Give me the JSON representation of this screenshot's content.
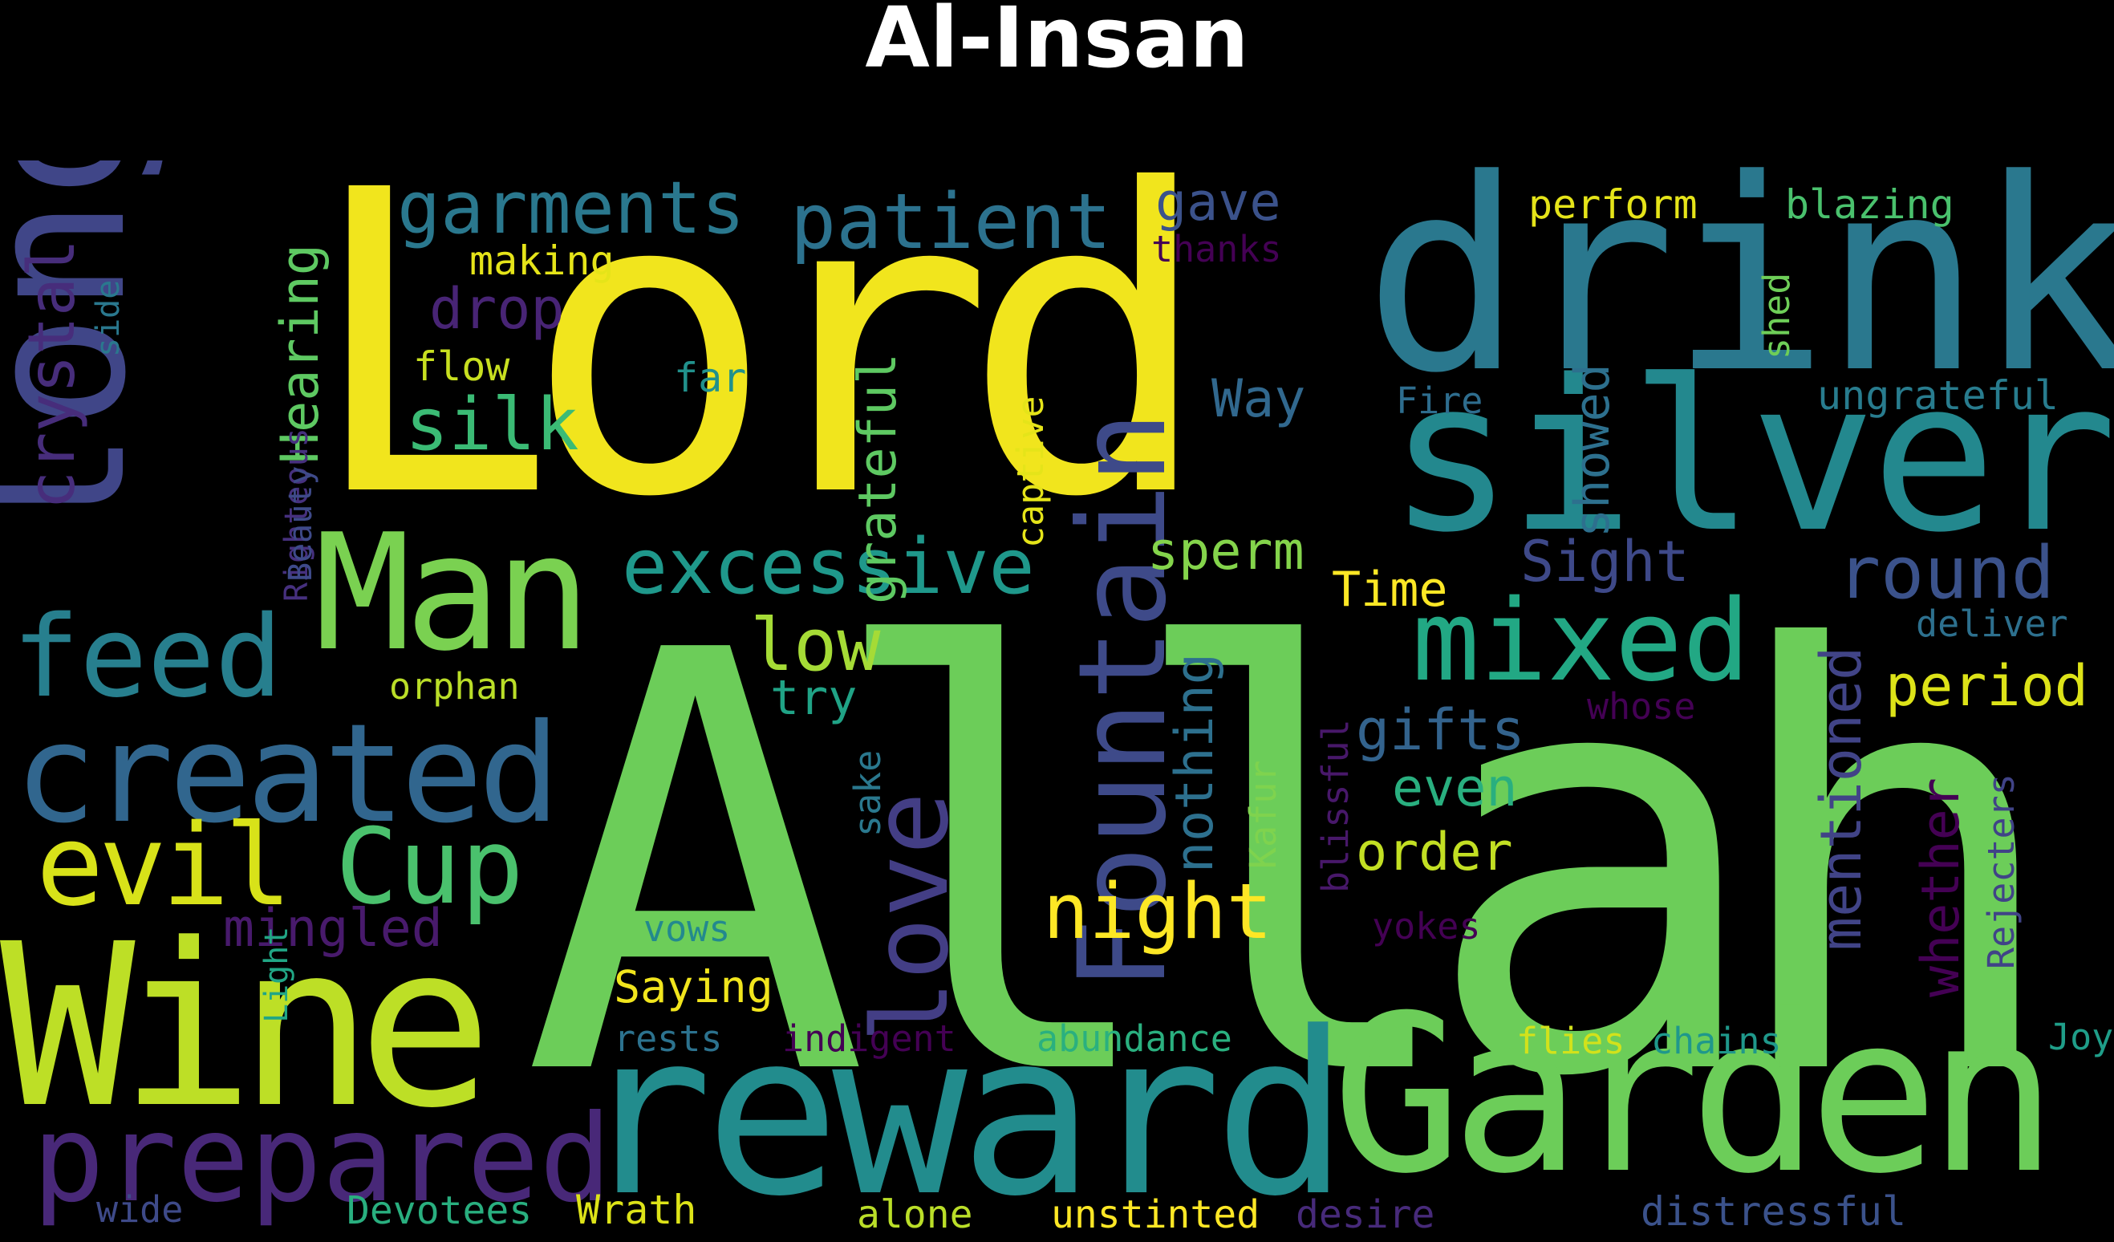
{
  "title": "Al-Insan",
  "colors": {
    "background": "#000000",
    "title": "#ffffff"
  },
  "words": [
    {
      "text": "Allah",
      "color": "#6ccd59"
    },
    {
      "text": "Lord",
      "color": "#f1e51d"
    },
    {
      "text": "drink",
      "color": "#2a788e"
    },
    {
      "text": "silver",
      "color": "#23888e"
    },
    {
      "text": "reward",
      "color": "#228c8d"
    },
    {
      "text": "Garden",
      "color": "#6ccd59"
    },
    {
      "text": "Wine",
      "color": "#bddf26"
    },
    {
      "text": "long",
      "color": "#404688"
    },
    {
      "text": "Man",
      "color": "#7ad151"
    },
    {
      "text": "Fountain",
      "color": "#3e4a89"
    },
    {
      "text": "created",
      "color": "#31668e"
    },
    {
      "text": "prepared",
      "color": "#482878"
    },
    {
      "text": "mixed",
      "color": "#22a884"
    },
    {
      "text": "feed",
      "color": "#277f8e"
    },
    {
      "text": "evil",
      "color": "#d8e219"
    },
    {
      "text": "Cup",
      "color": "#4ac16d"
    },
    {
      "text": "love",
      "color": "#433e85"
    },
    {
      "text": "excessive",
      "color": "#1f988b"
    },
    {
      "text": "patient",
      "color": "#2c728e"
    },
    {
      "text": "garments",
      "color": "#2a788e"
    },
    {
      "text": "night",
      "color": "#fde725"
    },
    {
      "text": "silk",
      "color": "#3bbb75"
    },
    {
      "text": "crystal",
      "color": "#472d7b"
    },
    {
      "text": "low",
      "color": "#a5db36"
    },
    {
      "text": "round",
      "color": "#3b528b"
    },
    {
      "text": "period",
      "color": "#dde318"
    },
    {
      "text": "mentioned",
      "color": "#414487"
    },
    {
      "text": "grateful",
      "color": "#5ec962"
    },
    {
      "text": "nothing",
      "color": "#2d708e"
    },
    {
      "text": "Hearing",
      "color": "#5ec962"
    },
    {
      "text": "Sight",
      "color": "#3e4989"
    },
    {
      "text": "gifts",
      "color": "#33638d"
    },
    {
      "text": "order",
      "color": "#c2df23"
    },
    {
      "text": "even",
      "color": "#29af7f"
    },
    {
      "text": "drop",
      "color": "#482475"
    },
    {
      "text": "Way",
      "color": "#31688e"
    },
    {
      "text": "sperm",
      "color": "#84d44b"
    },
    {
      "text": "Time",
      "color": "#fde725"
    },
    {
      "text": "mingled",
      "color": "#481a6c"
    },
    {
      "text": "showed",
      "color": "#2d708e"
    },
    {
      "text": "whether",
      "color": "#440154"
    },
    {
      "text": "try",
      "color": "#20a386"
    },
    {
      "text": "gave",
      "color": "#3b528b"
    },
    {
      "text": "perform",
      "color": "#e5e419"
    },
    {
      "text": "blazing",
      "color": "#4ac16d"
    },
    {
      "text": "ungrateful",
      "color": "#287c8e"
    },
    {
      "text": "deliver",
      "color": "#2d708e"
    },
    {
      "text": "Rejecters",
      "color": "#404387"
    },
    {
      "text": "captive",
      "color": "#e5e419"
    },
    {
      "text": "Kafur",
      "color": "#7fd34e"
    },
    {
      "text": "blissful",
      "color": "#48186a"
    },
    {
      "text": "making",
      "color": "#e5e419"
    },
    {
      "text": "thanks",
      "color": "#440154"
    },
    {
      "text": "flow",
      "color": "#c8e020"
    },
    {
      "text": "far",
      "color": "#21918c"
    },
    {
      "text": "Fire",
      "color": "#2e6d8e"
    },
    {
      "text": "shed",
      "color": "#6ece58"
    },
    {
      "text": "whose",
      "color": "#440154"
    },
    {
      "text": "orphan",
      "color": "#bade28"
    },
    {
      "text": "sake",
      "color": "#2a788e"
    },
    {
      "text": "side",
      "color": "#2a788e"
    },
    {
      "text": "Righteous",
      "color": "#46307e"
    },
    {
      "text": "Beauty",
      "color": "#3e4a89"
    },
    {
      "text": "Light",
      "color": "#21a685"
    },
    {
      "text": "vows",
      "color": "#23898e"
    },
    {
      "text": "yokes",
      "color": "#440154"
    },
    {
      "text": "Saying",
      "color": "#f1e51d"
    },
    {
      "text": "rests",
      "color": "#2c728e"
    },
    {
      "text": "indigent",
      "color": "#440154"
    },
    {
      "text": "abundance",
      "color": "#2ab07f"
    },
    {
      "text": "flies",
      "color": "#d2e21b"
    },
    {
      "text": "chains",
      "color": "#1f988b"
    },
    {
      "text": "Joy",
      "color": "#1f9e89"
    },
    {
      "text": "wide",
      "color": "#3e4a89"
    },
    {
      "text": "Devotees",
      "color": "#29af7f"
    },
    {
      "text": "Wrath",
      "color": "#dde318"
    },
    {
      "text": "alone",
      "color": "#bade28"
    },
    {
      "text": "unstinted",
      "color": "#fde725"
    },
    {
      "text": "desire",
      "color": "#472a7a"
    },
    {
      "text": "distressful",
      "color": "#3b528b"
    }
  ]
}
